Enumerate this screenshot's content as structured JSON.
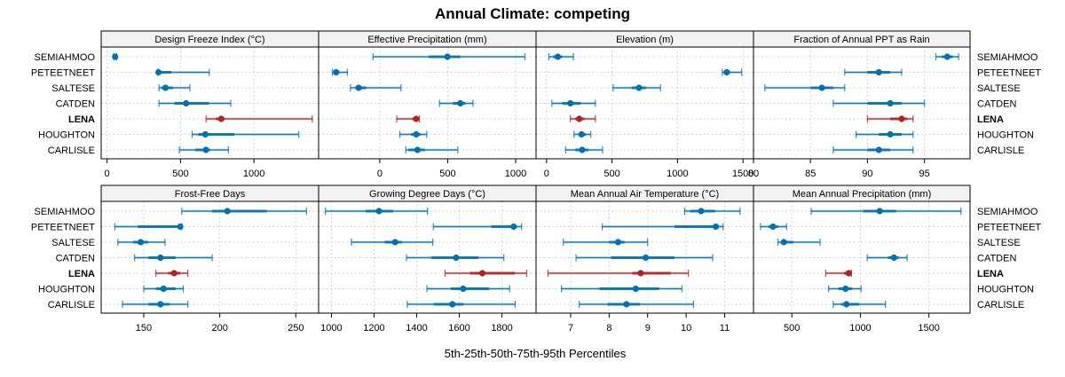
{
  "chart_data": {
    "type": "dotplot-percentile",
    "title": "Annual Climate: competing",
    "xlabel": "5th-25th-50th-75th-95th Percentiles",
    "ylabel": "",
    "categories": [
      "SEMIAHMOO",
      "PETEETNEET",
      "SALTESE",
      "CATDEN",
      "LENA",
      "HOUGHTON",
      "CARLISLE"
    ],
    "highlight": "LENA",
    "colors": {
      "default": "#0072b2",
      "highlight": "#b22222",
      "strip_bg": "#f2f2f2",
      "grid": "#c8c8c8"
    },
    "grid": true,
    "layout": "2 rows x 4 panels, row labels left and right",
    "panels": [
      {
        "name": "Design Freeze Index (°C)",
        "xlim": [
          -40,
          1440
        ],
        "ticks": [
          0,
          500,
          1000
        ],
        "series": [
          {
            "site": "SEMIAHMOO",
            "p5": 45,
            "p25": 50,
            "p50": 55,
            "p75": 60,
            "p95": 65
          },
          {
            "site": "PETEETNEET",
            "p5": 345,
            "p25": 350,
            "p50": 350,
            "p75": 438,
            "p95": 696
          },
          {
            "site": "SALTESE",
            "p5": 354,
            "p25": 370,
            "p50": 398,
            "p75": 450,
            "p95": 564
          },
          {
            "site": "CATDEN",
            "p5": 354,
            "p25": 460,
            "p50": 538,
            "p75": 693,
            "p95": 842
          },
          {
            "site": "LENA",
            "p5": 674,
            "p25": 740,
            "p50": 777,
            "p75": 800,
            "p95": 1397
          },
          {
            "site": "HOUGHTON",
            "p5": 579,
            "p25": 620,
            "p50": 669,
            "p75": 866,
            "p95": 1305
          },
          {
            "site": "CARLISLE",
            "p5": 492,
            "p25": 600,
            "p50": 673,
            "p75": 700,
            "p95": 826
          }
        ]
      },
      {
        "name": "Effective Precipitation (mm)",
        "xlim": [
          -450,
          1150
        ],
        "ticks": [
          0,
          500,
          1000
        ],
        "series": [
          {
            "site": "SEMIAHMOO",
            "p5": -50,
            "p25": 361,
            "p50": 497,
            "p75": 592,
            "p95": 1069
          },
          {
            "site": "PETEETNEET",
            "p5": -348,
            "p25": -340,
            "p50": -321,
            "p75": -300,
            "p95": -238
          },
          {
            "site": "SALTESE",
            "p5": -216,
            "p25": -180,
            "p50": -155,
            "p75": -100,
            "p95": 156
          },
          {
            "site": "CATDEN",
            "p5": 440,
            "p25": 540,
            "p50": 593,
            "p75": 630,
            "p95": 686
          },
          {
            "site": "LENA",
            "p5": 125,
            "p25": 240,
            "p50": 268,
            "p75": 285,
            "p95": 292
          },
          {
            "site": "HOUGHTON",
            "p5": 148,
            "p25": 230,
            "p50": 268,
            "p75": 300,
            "p95": 346
          },
          {
            "site": "CARLISLE",
            "p5": 191,
            "p25": 210,
            "p50": 277,
            "p75": 333,
            "p95": 574
          }
        ]
      },
      {
        "name": "Elevation (m)",
        "xlim": [
          -80,
          1580
        ],
        "ticks": [
          0,
          500,
          1000,
          1500
        ],
        "series": [
          {
            "site": "SEMIAHMOO",
            "p5": 18,
            "p25": 50,
            "p50": 86,
            "p75": 120,
            "p95": 205
          },
          {
            "site": "PETEETNEET",
            "p5": 1342,
            "p25": 1355,
            "p50": 1376,
            "p75": 1400,
            "p95": 1490
          },
          {
            "site": "SALTESE",
            "p5": 508,
            "p25": 650,
            "p50": 706,
            "p75": 760,
            "p95": 870
          },
          {
            "site": "CATDEN",
            "p5": 41,
            "p25": 120,
            "p50": 182,
            "p75": 260,
            "p95": 373
          },
          {
            "site": "LENA",
            "p5": 182,
            "p25": 220,
            "p50": 250,
            "p75": 290,
            "p95": 373
          },
          {
            "site": "HOUGHTON",
            "p5": 210,
            "p25": 245,
            "p50": 267,
            "p75": 300,
            "p95": 338
          },
          {
            "site": "CARLISLE",
            "p5": 146,
            "p25": 220,
            "p50": 272,
            "p75": 320,
            "p95": 428
          }
        ]
      },
      {
        "name": "Fraction of Annual PPT as Rain",
        "xlim": [
          80,
          99
        ],
        "ticks": [
          80,
          85,
          90,
          95
        ],
        "series": [
          {
            "site": "SEMIAHMOO",
            "p5": 96,
            "p25": 96.5,
            "p50": 97,
            "p75": 97.5,
            "p95": 98
          },
          {
            "site": "PETEETNEET",
            "p5": 88,
            "p25": 90,
            "p50": 91,
            "p75": 92,
            "p95": 93
          },
          {
            "site": "SALTESE",
            "p5": 81,
            "p25": 85,
            "p50": 86,
            "p75": 87,
            "p95": 88
          },
          {
            "site": "CATDEN",
            "p5": 87,
            "p25": 90,
            "p50": 92,
            "p75": 93,
            "p95": 95
          },
          {
            "site": "LENA",
            "p5": 90,
            "p25": 92,
            "p50": 93,
            "p75": 93.5,
            "p95": 94
          },
          {
            "site": "HOUGHTON",
            "p5": 89,
            "p25": 91,
            "p50": 92,
            "p75": 93,
            "p95": 94
          },
          {
            "site": "CARLISLE",
            "p5": 87,
            "p25": 90,
            "p50": 91,
            "p75": 92,
            "p95": 94
          }
        ]
      },
      {
        "name": "Frost-Free Days",
        "xlim": [
          122,
          265
        ],
        "ticks": [
          150,
          200,
          250
        ],
        "series": [
          {
            "site": "SEMIAHMOO",
            "p5": 175,
            "p25": 195,
            "p50": 205,
            "p75": 231,
            "p95": 257
          },
          {
            "site": "PETEETNEET",
            "p5": 131,
            "p25": 146,
            "p50": 174,
            "p75": 174,
            "p95": 175
          },
          {
            "site": "SALTESE",
            "p5": 133,
            "p25": 143,
            "p50": 148,
            "p75": 153,
            "p95": 164
          },
          {
            "site": "CATDEN",
            "p5": 144,
            "p25": 153,
            "p50": 161,
            "p75": 171,
            "p95": 195
          },
          {
            "site": "LENA",
            "p5": 158,
            "p25": 166,
            "p50": 170,
            "p75": 174,
            "p95": 179
          },
          {
            "site": "HOUGHTON",
            "p5": 150,
            "p25": 158,
            "p50": 163,
            "p75": 171,
            "p95": 176
          },
          {
            "site": "CARLISLE",
            "p5": 136,
            "p25": 153,
            "p50": 161,
            "p75": 167,
            "p95": 179
          }
        ]
      },
      {
        "name": "Growing Degree Days (°C)",
        "xlim": [
          940,
          1960
        ],
        "ticks": [
          1000,
          1200,
          1400,
          1600,
          1800
        ],
        "series": [
          {
            "site": "SEMIAHMOO",
            "p5": 972,
            "p25": 1160,
            "p50": 1223,
            "p75": 1290,
            "p95": 1451
          },
          {
            "site": "PETEETNEET",
            "p5": 1478,
            "p25": 1750,
            "p50": 1855,
            "p75": 1870,
            "p95": 1892
          },
          {
            "site": "SALTESE",
            "p5": 1094,
            "p25": 1250,
            "p50": 1299,
            "p75": 1330,
            "p95": 1476
          },
          {
            "site": "CATDEN",
            "p5": 1352,
            "p25": 1470,
            "p50": 1585,
            "p75": 1690,
            "p95": 1809
          },
          {
            "site": "LENA",
            "p5": 1533,
            "p25": 1650,
            "p50": 1708,
            "p75": 1860,
            "p95": 1916
          },
          {
            "site": "HOUGHTON",
            "p5": 1448,
            "p25": 1560,
            "p50": 1618,
            "p75": 1740,
            "p95": 1836
          },
          {
            "site": "CARLISLE",
            "p5": 1356,
            "p25": 1480,
            "p50": 1568,
            "p75": 1620,
            "p95": 1862
          }
        ]
      },
      {
        "name": "Mean Annual Air Temperature (°C)",
        "xlim": [
          6.1,
          11.75
        ],
        "ticks": [
          7,
          8,
          9,
          10,
          11
        ],
        "series": [
          {
            "site": "SEMIAHMOO",
            "p5": 9.96,
            "p25": 10.1,
            "p50": 10.39,
            "p75": 10.75,
            "p95": 11.4
          },
          {
            "site": "PETEETNEET",
            "p5": 7.82,
            "p25": 9.7,
            "p50": 10.77,
            "p75": 10.85,
            "p95": 10.96
          },
          {
            "site": "SALTESE",
            "p5": 6.81,
            "p25": 8.0,
            "p50": 8.23,
            "p75": 8.4,
            "p95": 9.0
          },
          {
            "site": "CATDEN",
            "p5": 7.14,
            "p25": 8.05,
            "p50": 8.95,
            "p75": 9.7,
            "p95": 10.69
          },
          {
            "site": "LENA",
            "p5": 6.41,
            "p25": 8.6,
            "p50": 8.82,
            "p75": 9.6,
            "p95": 10.06
          },
          {
            "site": "HOUGHTON",
            "p5": 6.76,
            "p25": 7.75,
            "p50": 8.69,
            "p75": 9.3,
            "p95": 9.89
          },
          {
            "site": "CARLISLE",
            "p5": 7.22,
            "p25": 7.95,
            "p50": 8.45,
            "p75": 8.8,
            "p95": 10.19
          }
        ]
      },
      {
        "name": "Mean Annual Precipitation (mm)",
        "xlim": [
          220,
          1800
        ],
        "ticks": [
          500,
          1000,
          1500
        ],
        "series": [
          {
            "site": "SEMIAHMOO",
            "p5": 641,
            "p25": 1020,
            "p50": 1141,
            "p75": 1260,
            "p95": 1734
          },
          {
            "site": "PETEETNEET",
            "p5": 271,
            "p25": 330,
            "p50": 362,
            "p75": 400,
            "p95": 461
          },
          {
            "site": "SALTESE",
            "p5": 398,
            "p25": 420,
            "p50": 441,
            "p75": 510,
            "p95": 706
          },
          {
            "site": "CATDEN",
            "p5": 1050,
            "p25": 1200,
            "p50": 1245,
            "p75": 1280,
            "p95": 1341
          },
          {
            "site": "LENA",
            "p5": 747,
            "p25": 880,
            "p50": 915,
            "p75": 925,
            "p95": 935
          },
          {
            "site": "HOUGHTON",
            "p5": 768,
            "p25": 840,
            "p50": 892,
            "p75": 940,
            "p95": 1005
          },
          {
            "site": "CARLISLE",
            "p5": 802,
            "p25": 860,
            "p50": 898,
            "p75": 990,
            "p95": 1183
          }
        ]
      }
    ]
  }
}
